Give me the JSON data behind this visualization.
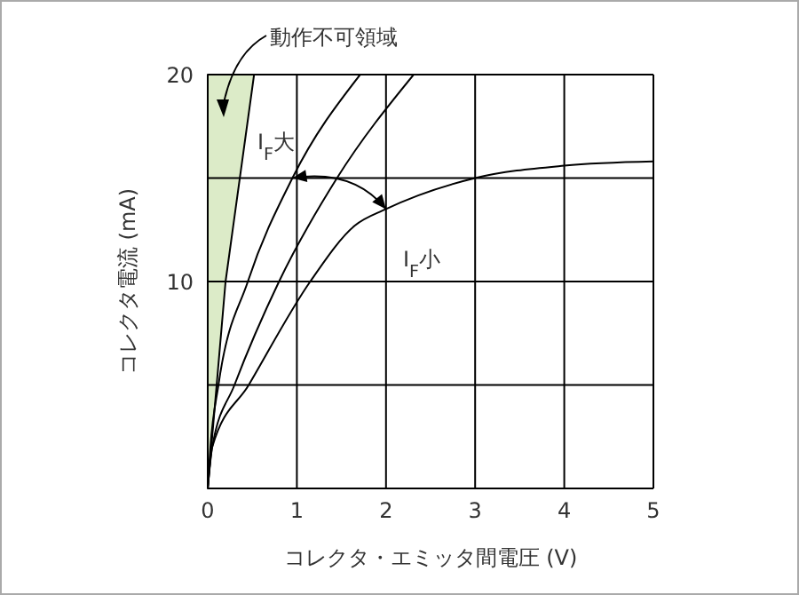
{
  "chart_data": {
    "type": "line",
    "xlabel": "コレクタ・エミッタ間電圧 (V)",
    "ylabel": "コレクタ電流 (mA)",
    "series": [
      {
        "type": "area",
        "color": "#dcebc8",
        "x": [
          0,
          0.2,
          0.52,
          0
        ],
        "values": [
          0,
          10,
          20,
          20
        ]
      },
      {
        "color": "#000000",
        "x": [
          0,
          0.03,
          0.12,
          0.45,
          0.95,
          1.71
        ],
        "values": [
          0,
          2,
          5,
          10,
          15,
          20
        ]
      },
      {
        "color": "#000000",
        "x": [
          0,
          0.05,
          0.3,
          0.8,
          1.45,
          2.31
        ],
        "values": [
          0,
          2,
          5,
          10,
          15,
          20
        ]
      },
      {
        "color": "#000000",
        "x": [
          0,
          0.05,
          0.46,
          1.15,
          1.65,
          2,
          3,
          4,
          5
        ],
        "values": [
          0,
          2,
          5,
          10,
          12.7,
          13.5,
          15,
          15.6,
          15.8
        ]
      }
    ],
    "xlim": [
      0,
      5
    ],
    "xticks": [
      0,
      1,
      2,
      3,
      4,
      5
    ],
    "ylim": [
      0,
      20
    ],
    "yticks": [
      {
        "value": 5,
        "label": null
      },
      10,
      {
        "value": 15,
        "label": null
      },
      20
    ],
    "grid": true,
    "marker": "none",
    "line_style": "solid",
    "annotations": [
      "動作不可領域",
      {
        "text": "I$_{F}$大",
        "x": 0.95,
        "y": 15
      },
      {
        "text": "I$_{F}$小",
        "x": 2,
        "y": 13.5
      }
    ]
  }
}
